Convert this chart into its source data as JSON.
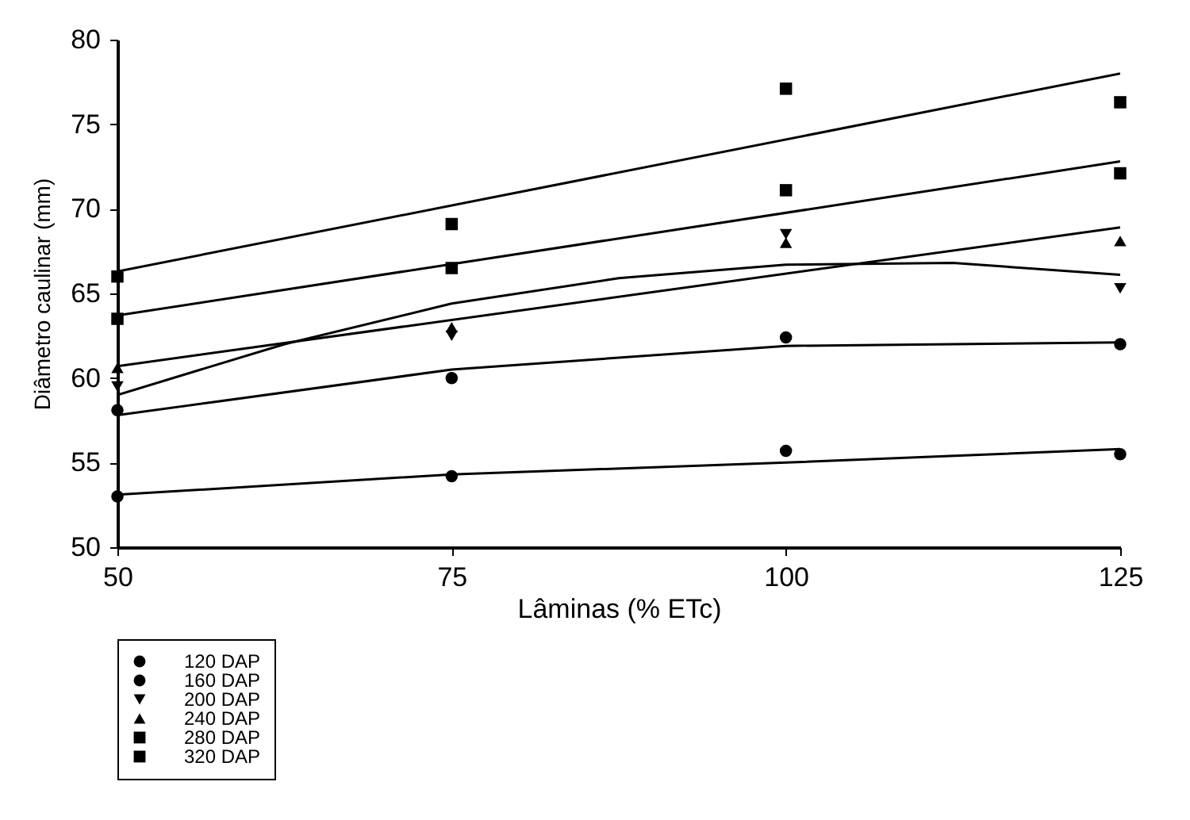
{
  "chart_data": {
    "type": "scatter",
    "xlabel": "Lâminas (% ETc)",
    "ylabel": "Diâmetro caulinar (mm)",
    "x": [
      50,
      75,
      100,
      125
    ],
    "xlim": [
      50,
      125
    ],
    "xticks": [
      50,
      75,
      100,
      125
    ],
    "ylim": [
      50,
      80
    ],
    "yticks": [
      50,
      55,
      60,
      65,
      70,
      75,
      80
    ],
    "grid": false,
    "legend": "bottom left",
    "series": [
      {
        "name": "120 DAP",
        "color": "#000000",
        "marker": "circle",
        "values": [
          53.0,
          54.2,
          55.7,
          55.5
        ]
      },
      {
        "name": "160 DAP",
        "color": "#000000",
        "marker": "circle",
        "values": [
          58.1,
          60.0,
          62.4,
          62.0
        ]
      },
      {
        "name": "200 DAP",
        "color": "#000000",
        "marker": "triangle-down",
        "values": [
          59.5,
          62.5,
          68.5,
          65.3
        ]
      },
      {
        "name": "240 DAP",
        "color": "#000000",
        "marker": "triangle",
        "values": [
          60.6,
          63.0,
          68.0,
          68.1
        ]
      },
      {
        "name": "280 DAP",
        "color": "#000000",
        "marker": "square",
        "values": [
          63.5,
          66.5,
          71.1,
          72.1
        ]
      },
      {
        "name": "320 DAP",
        "color": "#000000",
        "marker": "square",
        "values": [
          66.0,
          69.1,
          77.1,
          76.3
        ]
      },
      {
        "type": "line",
        "color": "#000000",
        "x": [
          50,
          75,
          100,
          125
        ],
        "values": [
          53.1,
          54.3,
          55.0,
          55.8
        ]
      },
      {
        "type": "line",
        "color": "#000000",
        "x": [
          50,
          75,
          100,
          125
        ],
        "values": [
          57.8,
          60.5,
          61.9,
          62.1
        ]
      },
      {
        "type": "line",
        "color": "#000000",
        "x": [
          50,
          62.5,
          75,
          87.5,
          100,
          112.5,
          125
        ],
        "values": [
          59.0,
          62.0,
          64.4,
          65.9,
          66.7,
          66.8,
          66.1
        ]
      },
      {
        "type": "line",
        "color": "#000000",
        "x": [
          50,
          125
        ],
        "values": [
          60.7,
          68.9
        ]
      },
      {
        "type": "line",
        "color": "#000000",
        "x": [
          50,
          125
        ],
        "values": [
          63.7,
          72.8
        ]
      },
      {
        "type": "line",
        "color": "#000000",
        "x": [
          50,
          125
        ],
        "values": [
          66.3,
          78.0
        ]
      }
    ]
  }
}
